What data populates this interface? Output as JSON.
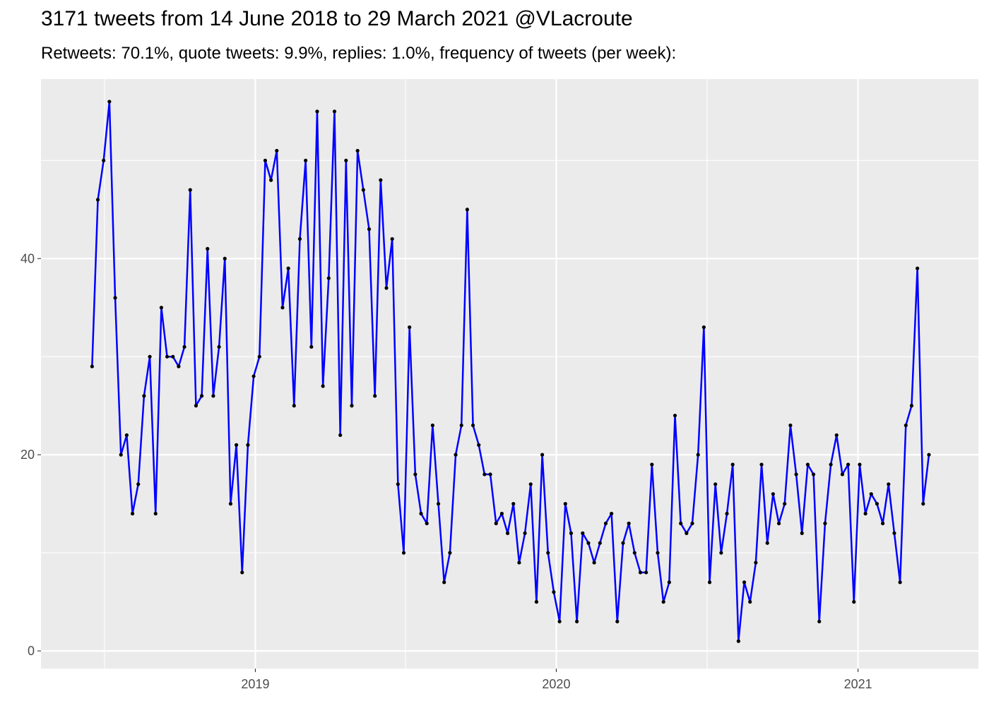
{
  "chart_data": {
    "type": "line",
    "title": "3171 tweets from 14 June 2018 to 29 March 2021 @VLacroute",
    "subtitle": "Retweets: 70.1%, quote tweets: 9.9%, replies: 1.0%, frequency of tweets (per week):",
    "xlabel": "",
    "ylabel": "",
    "x_ticks": [
      "2019",
      "2020",
      "2021"
    ],
    "x_tick_dates": [
      "2019-01-01",
      "2020-01-01",
      "2021-01-01"
    ],
    "y_ticks": [
      0,
      20,
      40
    ],
    "xlim": [
      "2018-04-16",
      "2021-05-27"
    ],
    "ylim": [
      -1.8,
      58.3
    ],
    "grid": true,
    "panel_background": "#EBEBEB",
    "line_color": "#0000FF",
    "point_color": "#000000",
    "series": [
      {
        "x": [
          "2018-06-17",
          "2018-06-24",
          "2018-07-01",
          "2018-07-08",
          "2018-07-15",
          "2018-07-22",
          "2018-07-29",
          "2018-08-05",
          "2018-08-12",
          "2018-08-19",
          "2018-08-26",
          "2018-09-02",
          "2018-09-09",
          "2018-09-16",
          "2018-09-23",
          "2018-09-30",
          "2018-10-07",
          "2018-10-14",
          "2018-10-21",
          "2018-10-28",
          "2018-11-04",
          "2018-11-11",
          "2018-11-18",
          "2018-11-25",
          "2018-12-02",
          "2018-12-09",
          "2018-12-16",
          "2018-12-23",
          "2018-12-30",
          "2019-01-06",
          "2019-01-13",
          "2019-01-20",
          "2019-01-27",
          "2019-02-03",
          "2019-02-10",
          "2019-02-17",
          "2019-02-24",
          "2019-03-03",
          "2019-03-10",
          "2019-03-17",
          "2019-03-24",
          "2019-03-31",
          "2019-04-07",
          "2019-04-14",
          "2019-04-21",
          "2019-04-28",
          "2019-05-05",
          "2019-05-12",
          "2019-05-19",
          "2019-05-26",
          "2019-06-02",
          "2019-06-09",
          "2019-06-16",
          "2019-06-23",
          "2019-06-30",
          "2019-07-07",
          "2019-07-14",
          "2019-07-21",
          "2019-07-28",
          "2019-08-04",
          "2019-08-11",
          "2019-08-18",
          "2019-08-25",
          "2019-09-01",
          "2019-09-08",
          "2019-09-15",
          "2019-09-22",
          "2019-09-29",
          "2019-10-06",
          "2019-10-13",
          "2019-10-20",
          "2019-10-27",
          "2019-11-03",
          "2019-11-10",
          "2019-11-17",
          "2019-11-24",
          "2019-12-01",
          "2019-12-08",
          "2019-12-15",
          "2019-12-22",
          "2019-12-29",
          "2020-01-05",
          "2020-01-12",
          "2020-01-19",
          "2020-01-26",
          "2020-02-02",
          "2020-02-09",
          "2020-02-16",
          "2020-02-23",
          "2020-03-01",
          "2020-03-08",
          "2020-03-15",
          "2020-03-22",
          "2020-03-29",
          "2020-04-05",
          "2020-04-12",
          "2020-04-19",
          "2020-04-26",
          "2020-05-03",
          "2020-05-10",
          "2020-05-17",
          "2020-05-24",
          "2020-05-31",
          "2020-06-07",
          "2020-06-14",
          "2020-06-21",
          "2020-06-28",
          "2020-07-05",
          "2020-07-12",
          "2020-07-19",
          "2020-07-26",
          "2020-08-02",
          "2020-08-09",
          "2020-08-16",
          "2020-08-23",
          "2020-08-30",
          "2020-09-06",
          "2020-09-13",
          "2020-09-20",
          "2020-09-27",
          "2020-10-04",
          "2020-10-11",
          "2020-10-18",
          "2020-10-25",
          "2020-11-01",
          "2020-11-08",
          "2020-11-15",
          "2020-11-22",
          "2020-11-29",
          "2020-12-06",
          "2020-12-13",
          "2020-12-20",
          "2020-12-27",
          "2021-01-03",
          "2021-01-10",
          "2021-01-17",
          "2021-01-24",
          "2021-01-31",
          "2021-02-07",
          "2021-02-14",
          "2021-02-21",
          "2021-02-28",
          "2021-03-07",
          "2021-03-14",
          "2021-03-21",
          "2021-03-28"
        ],
        "values": [
          29,
          46,
          50,
          56,
          36,
          20,
          22,
          14,
          17,
          26,
          30,
          14,
          35,
          30,
          30,
          29,
          31,
          47,
          25,
          26,
          41,
          26,
          31,
          40,
          15,
          21,
          8,
          21,
          28,
          30,
          50,
          48,
          51,
          35,
          39,
          25,
          42,
          50,
          31,
          55,
          27,
          38,
          55,
          22,
          50,
          25,
          51,
          47,
          43,
          26,
          48,
          37,
          42,
          17,
          10,
          33,
          18,
          14,
          13,
          23,
          15,
          7,
          10,
          20,
          23,
          45,
          23,
          21,
          18,
          18,
          13,
          14,
          12,
          15,
          9,
          12,
          17,
          5,
          20,
          10,
          6,
          3,
          15,
          12,
          3,
          12,
          11,
          9,
          11,
          13,
          14,
          3,
          11,
          13,
          10,
          8,
          8,
          19,
          10,
          5,
          7,
          24,
          13,
          12,
          13,
          20,
          33,
          7,
          17,
          10,
          14,
          19,
          1,
          7,
          5,
          9,
          19,
          11,
          16,
          13,
          15,
          23,
          18,
          12,
          19,
          18,
          3,
          13,
          19,
          22,
          18,
          19,
          5,
          19,
          14,
          16,
          15,
          13,
          17,
          12,
          7,
          23,
          25,
          39,
          15,
          20
        ]
      }
    ]
  }
}
